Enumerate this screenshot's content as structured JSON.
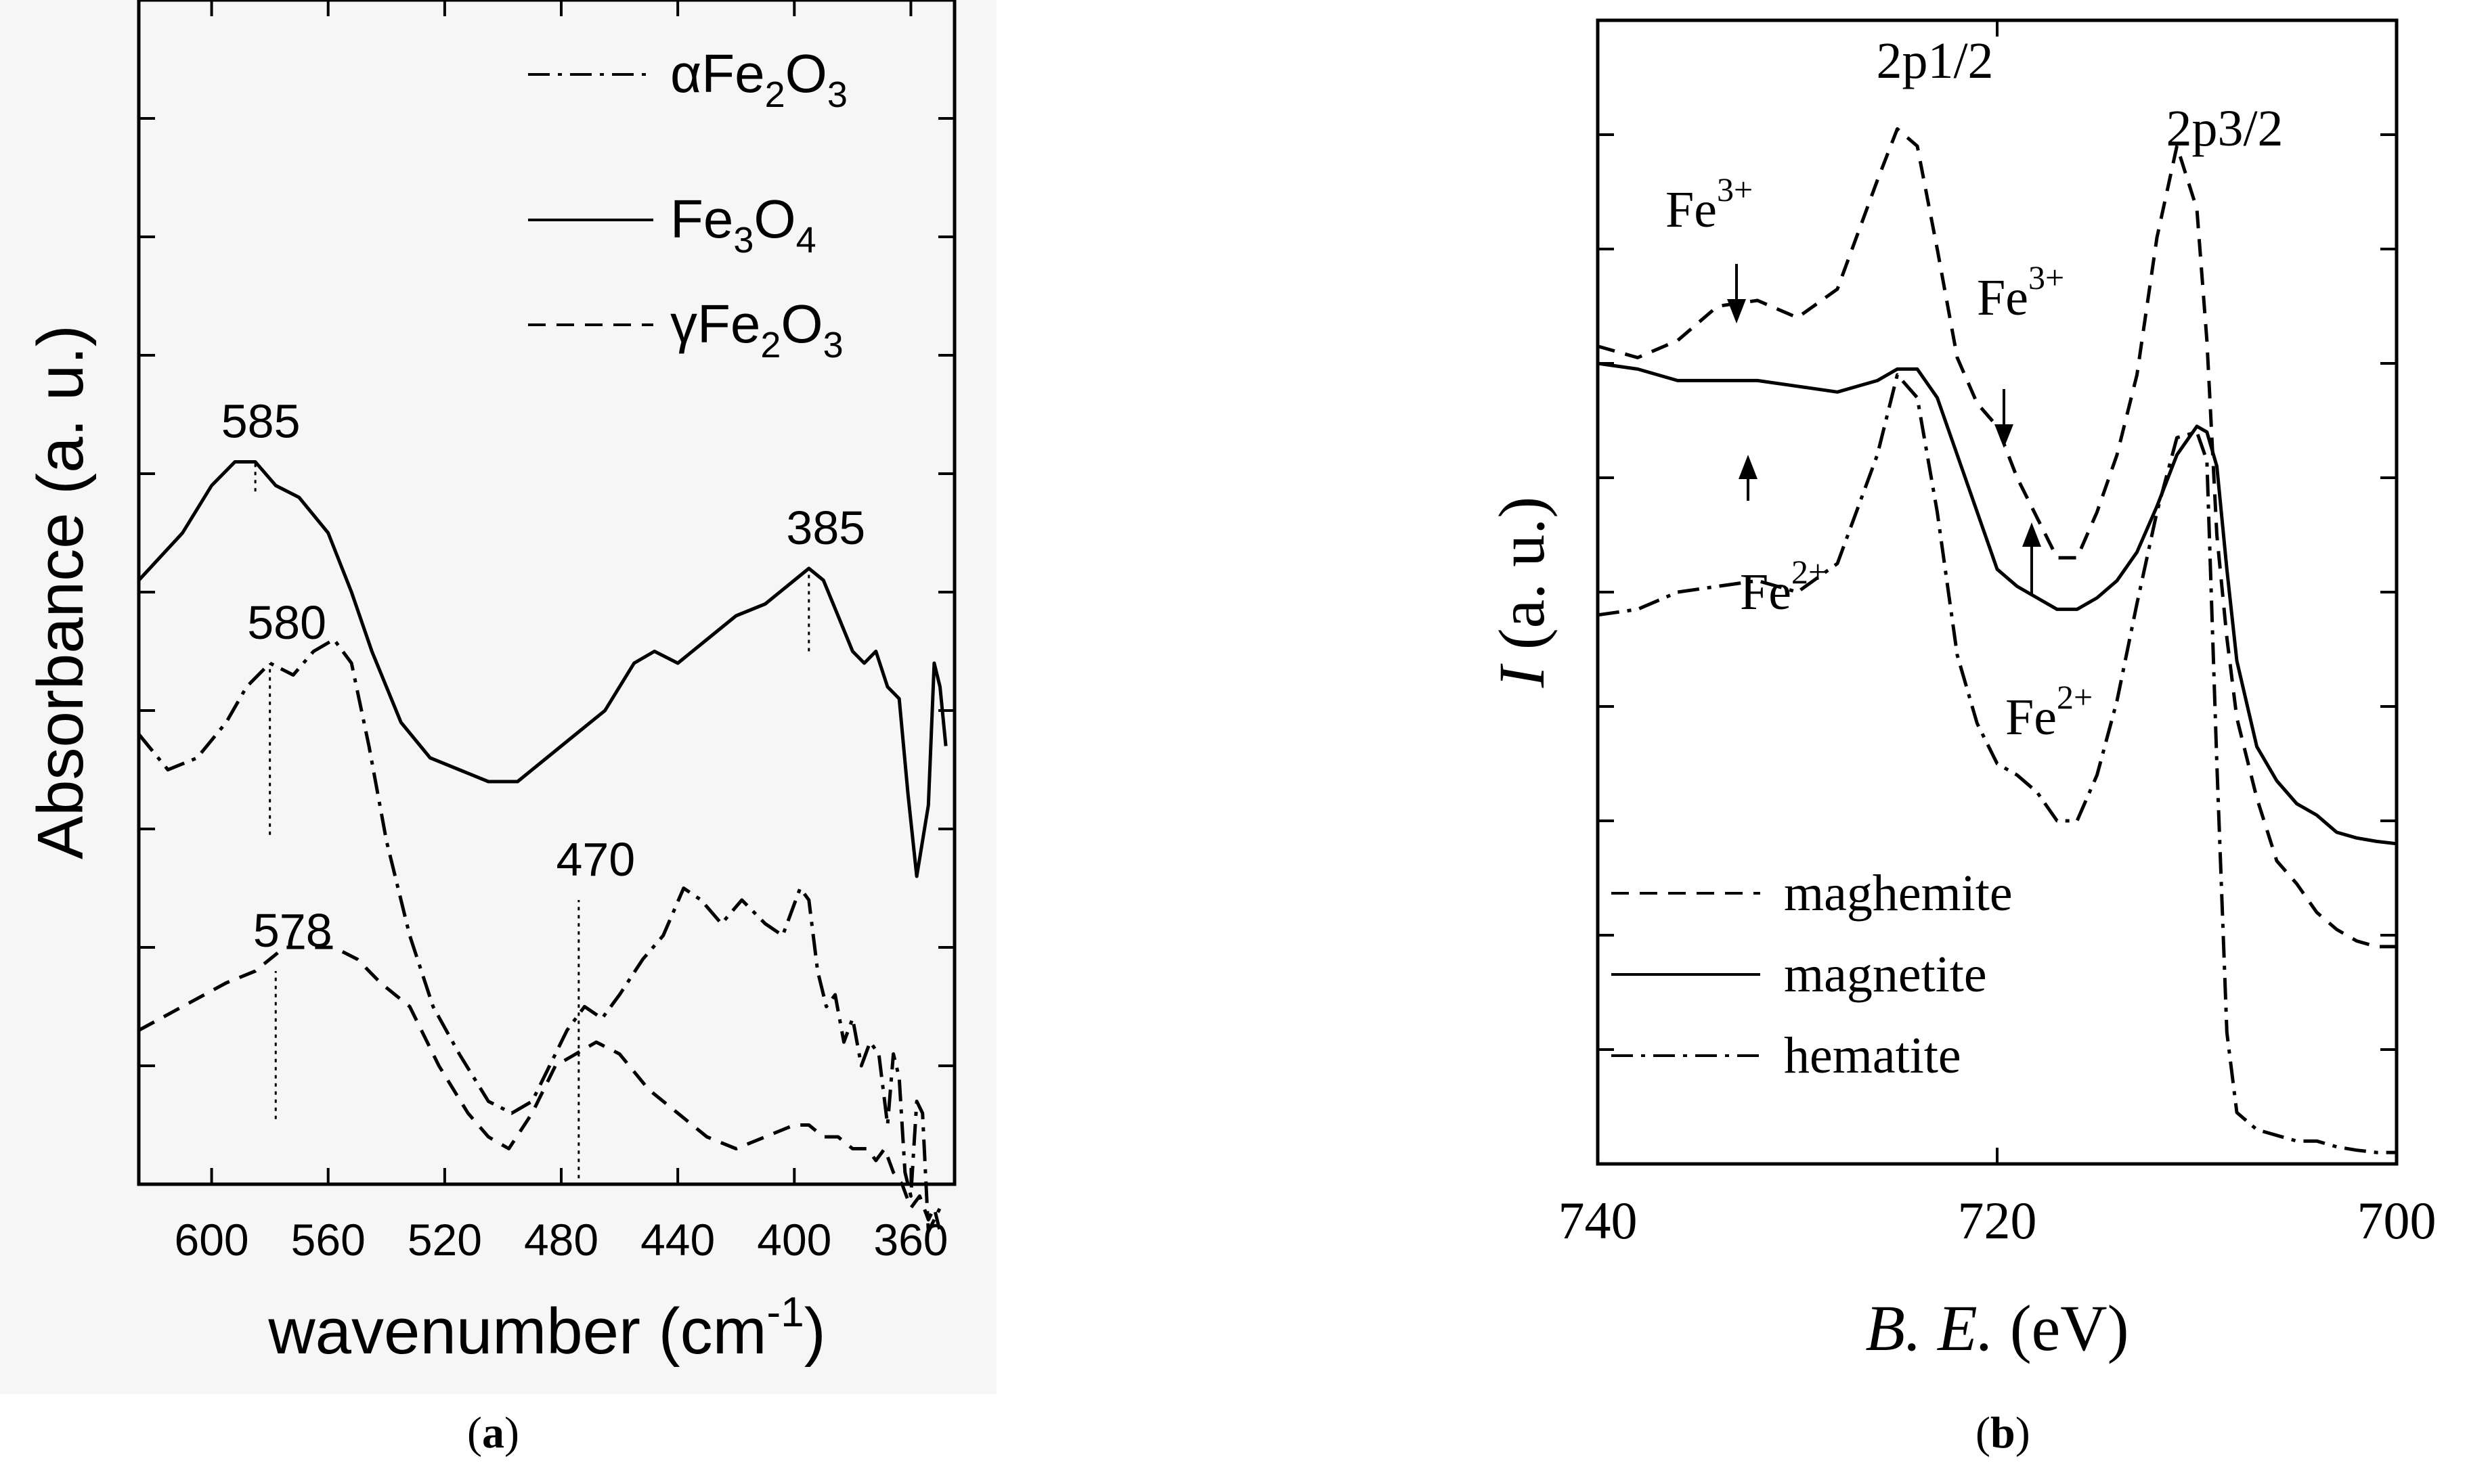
{
  "chart_data": [
    {
      "panel": "a",
      "caption": "a",
      "type": "line",
      "xlabel_main": "wavenumber (cm",
      "xlabel_sup": "-1",
      "xlabel_tail": ")",
      "ylabel": "Absorbance (a. u.)",
      "xlim": [
        625,
        345
      ],
      "x_reversed": true,
      "xticks": [
        "600",
        "560",
        "520",
        "480",
        "440",
        "400",
        "360"
      ],
      "xtick_values": [
        600,
        560,
        520,
        480,
        440,
        400,
        360
      ],
      "ylim": [
        0,
        10
      ],
      "y_tick_labels_shown": false,
      "legend": [
        {
          "label_prefix": "α",
          "formula": [
            [
              "Fe",
              ""
            ],
            [
              "2",
              "sub"
            ],
            [
              "O",
              ""
            ],
            [
              "3",
              "sub"
            ]
          ],
          "style": "dashdot"
        },
        {
          "label_prefix": "",
          "formula": [
            [
              "Fe",
              ""
            ],
            [
              "3",
              "sub"
            ],
            [
              "O",
              ""
            ],
            [
              "4",
              "sub"
            ]
          ],
          "style": "solid"
        },
        {
          "label_prefix": "γ",
          "formula": [
            [
              "Fe",
              ""
            ],
            [
              "2",
              "sub"
            ],
            [
              "O",
              ""
            ],
            [
              "3",
              "sub"
            ]
          ],
          "style": "dashed"
        }
      ],
      "series": [
        {
          "key": "magnetite",
          "style": "solid",
          "x": [
            625,
            610,
            600,
            592,
            585,
            578,
            570,
            560,
            552,
            545,
            535,
            525,
            515,
            505,
            495,
            485,
            475,
            465,
            455,
            448,
            440,
            430,
            420,
            410,
            400,
            395,
            390,
            385,
            380,
            376,
            372,
            368,
            364,
            361,
            358,
            354,
            352,
            350,
            348
          ],
          "y": [
            5.1,
            5.5,
            5.9,
            6.1,
            6.1,
            5.9,
            5.8,
            5.5,
            5.0,
            4.5,
            3.9,
            3.6,
            3.5,
            3.4,
            3.4,
            3.6,
            3.8,
            4.0,
            4.4,
            4.5,
            4.4,
            4.6,
            4.8,
            4.9,
            5.1,
            5.2,
            5.1,
            4.8,
            4.5,
            4.4,
            4.5,
            4.2,
            4.1,
            3.3,
            2.6,
            3.2,
            4.4,
            4.2,
            3.7
          ]
        },
        {
          "key": "hematite",
          "style": "dashdot",
          "x": [
            625,
            615,
            605,
            595,
            588,
            580,
            572,
            565,
            558,
            552,
            546,
            540,
            532,
            524,
            515,
            505,
            497,
            490,
            484,
            478,
            472,
            466,
            460,
            452,
            445,
            438,
            432,
            425,
            418,
            410,
            404,
            398,
            395,
            392,
            389,
            386,
            383,
            380,
            377,
            374,
            371,
            368,
            366,
            364,
            362,
            360,
            358,
            356,
            354,
            352,
            350
          ],
          "y": [
            3.8,
            3.5,
            3.6,
            3.9,
            4.2,
            4.4,
            4.3,
            4.5,
            4.6,
            4.4,
            3.7,
            2.9,
            2.1,
            1.5,
            1.1,
            0.7,
            0.6,
            0.7,
            1.0,
            1.3,
            1.5,
            1.4,
            1.6,
            1.9,
            2.1,
            2.5,
            2.4,
            2.2,
            2.4,
            2.2,
            2.1,
            2.5,
            2.4,
            1.8,
            1.5,
            1.6,
            1.2,
            1.4,
            1.0,
            1.2,
            1.1,
            0.5,
            1.1,
            0.9,
            0.1,
            -0.1,
            0.7,
            0.6,
            -0.4,
            -0.3,
            -0.2
          ]
        },
        {
          "key": "maghemite",
          "style": "dashed",
          "x": [
            625,
            610,
            595,
            585,
            575,
            565,
            558,
            550,
            542,
            532,
            522,
            512,
            505,
            498,
            490,
            482,
            475,
            468,
            460,
            450,
            440,
            430,
            420,
            410,
            400,
            395,
            390,
            385,
            380,
            375,
            372,
            369,
            366,
            363,
            360,
            357,
            354,
            352,
            350
          ],
          "y": [
            1.3,
            1.5,
            1.7,
            1.8,
            2.0,
            2.0,
            2.0,
            1.9,
            1.7,
            1.5,
            1.0,
            0.6,
            0.4,
            0.3,
            0.6,
            1.0,
            1.1,
            1.2,
            1.1,
            0.8,
            0.6,
            0.4,
            0.3,
            0.4,
            0.5,
            0.5,
            0.4,
            0.4,
            0.3,
            0.3,
            0.2,
            0.3,
            0.1,
            0.0,
            -0.2,
            -0.1,
            -0.3,
            -0.2,
            -0.4
          ]
        }
      ],
      "annotations": [
        {
          "text": "585",
          "x": 585,
          "y_top": 5.85,
          "y_bottom": 6.1
        },
        {
          "text": "580",
          "x": 580,
          "y_top": 2.95,
          "y_bottom": 4.4
        },
        {
          "text": "578",
          "x": 578,
          "y_top": 0.55,
          "y_bottom": 1.8
        },
        {
          "text": "470",
          "x": 474,
          "y_top": 0.05,
          "y_bottom": 2.4
        },
        {
          "text": "385",
          "x": 395,
          "y_top": 4.5,
          "y_bottom": 5.2
        }
      ]
    },
    {
      "panel": "b",
      "caption": "b",
      "type": "line",
      "xlabel": "B. E.",
      "xlabel_unit": "(eV)",
      "ylabel": "I",
      "ylabel_unit": "(a. u.)",
      "xlim": [
        740,
        700
      ],
      "x_reversed": true,
      "xticks": [
        "740",
        "720",
        "700"
      ],
      "xtick_values": [
        740,
        720,
        700
      ],
      "ylim": [
        0,
        10
      ],
      "y_tick_labels_shown": false,
      "legend": [
        {
          "label": "maghemite",
          "style": "dashed"
        },
        {
          "label": "magnetite",
          "style": "solid"
        },
        {
          "label": "hematite",
          "style": "dashdot"
        }
      ],
      "series": [
        {
          "key": "maghemite",
          "style": "dashed",
          "x": [
            740,
            738,
            736,
            734,
            732,
            730,
            728,
            726,
            725,
            724,
            723,
            722,
            721,
            720,
            719,
            718,
            717,
            716,
            715,
            714,
            713,
            712,
            711,
            710,
            709.5,
            709,
            708.5,
            708,
            707,
            706,
            705,
            704,
            703,
            702,
            701,
            700
          ],
          "y": [
            7.15,
            7.05,
            7.2,
            7.5,
            7.55,
            7.4,
            7.65,
            8.6,
            9.05,
            8.9,
            8.0,
            7.05,
            6.65,
            6.45,
            6.0,
            5.65,
            5.3,
            5.3,
            5.7,
            6.2,
            6.9,
            8.1,
            8.9,
            8.35,
            7.2,
            5.5,
            4.6,
            3.9,
            3.2,
            2.65,
            2.45,
            2.2,
            2.05,
            1.95,
            1.9,
            1.9
          ]
        },
        {
          "key": "magnetite",
          "style": "solid",
          "x": [
            740,
            738,
            736,
            734,
            732,
            730,
            728,
            726,
            725,
            724,
            723,
            722,
            721,
            720,
            719,
            718,
            717,
            716,
            715,
            714,
            713,
            712,
            711,
            710,
            709.5,
            709,
            708.5,
            708,
            707,
            706,
            705,
            704,
            703,
            702,
            701,
            700
          ],
          "y": [
            7.0,
            6.95,
            6.85,
            6.85,
            6.85,
            6.8,
            6.75,
            6.85,
            6.95,
            6.95,
            6.7,
            6.2,
            5.7,
            5.2,
            5.05,
            4.95,
            4.85,
            4.85,
            4.95,
            5.1,
            5.35,
            5.75,
            6.2,
            6.45,
            6.4,
            6.1,
            5.2,
            4.4,
            3.65,
            3.35,
            3.15,
            3.05,
            2.9,
            2.85,
            2.82,
            2.8
          ]
        },
        {
          "key": "hematite",
          "style": "dashdot",
          "x": [
            740,
            738,
            736,
            734,
            732,
            730,
            728,
            726,
            725,
            724,
            723,
            722,
            721,
            720,
            719,
            718,
            717,
            716,
            715,
            714,
            713,
            712,
            711,
            710,
            709.5,
            709,
            708.5,
            708,
            707,
            706,
            705,
            704,
            703,
            702,
            701,
            700
          ],
          "y": [
            4.8,
            4.85,
            5.0,
            5.05,
            5.1,
            5.0,
            5.25,
            6.2,
            6.9,
            6.7,
            5.7,
            4.45,
            3.85,
            3.5,
            3.4,
            3.25,
            3.0,
            3.0,
            3.4,
            4.05,
            4.9,
            5.7,
            6.35,
            6.4,
            6.15,
            3.5,
            1.15,
            0.45,
            0.3,
            0.25,
            0.2,
            0.2,
            0.15,
            0.12,
            0.1,
            0.1
          ]
        }
      ],
      "annotations": [
        {
          "text": "2p1/2",
          "kind": "label"
        },
        {
          "text": "2p3/2",
          "kind": "label"
        },
        {
          "base": "Fe",
          "sup": "3+",
          "arrow": "down",
          "x": 733
        },
        {
          "base": "Fe",
          "sup": "3+",
          "arrow": "down",
          "x": 719.5
        },
        {
          "base": "Fe",
          "sup": "2+",
          "arrow": "up",
          "x": 732
        },
        {
          "base": "Fe",
          "sup": "2+",
          "arrow": "up",
          "x": 718.2
        }
      ]
    }
  ]
}
